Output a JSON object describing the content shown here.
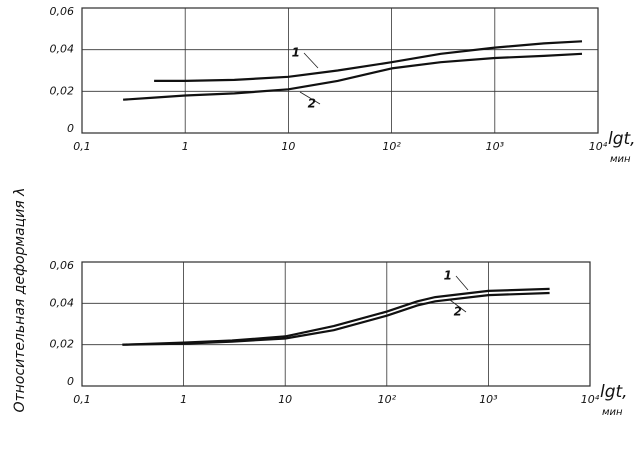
{
  "ylabel": "Относительная деформация λ",
  "chart_data": [
    {
      "type": "line",
      "log_x": true,
      "grid": true,
      "xlim": [
        0.1,
        10000
      ],
      "ylim": [
        0,
        0.06
      ],
      "xticks": [
        {
          "value": 0.1,
          "label": "0,1"
        },
        1,
        10,
        {
          "value": 100,
          "label": "10²"
        },
        {
          "value": 1000,
          "label": "10³"
        },
        {
          "value": 10000,
          "label": "10⁴"
        }
      ],
      "yticks": [
        0,
        {
          "value": 0.02,
          "label": "0,02"
        },
        {
          "value": 0.04,
          "label": "0,04"
        },
        {
          "value": 0.06,
          "label": "0,06"
        }
      ],
      "xlabel": "lgt,",
      "xunit": "мин",
      "x": [
        0.25,
        0.5,
        1,
        3,
        10,
        30,
        100,
        300,
        1000,
        3000,
        7000
      ],
      "series": [
        {
          "name": "1",
          "color": "#111111",
          "values": [
            null,
            0.025,
            0.025,
            0.0255,
            0.027,
            0.03,
            0.034,
            0.038,
            0.041,
            0.043,
            0.044
          ]
        },
        {
          "name": "2",
          "color": "#111111",
          "values": [
            0.016,
            0.017,
            0.018,
            0.019,
            0.021,
            0.025,
            0.031,
            0.034,
            0.036,
            0.037,
            0.038
          ]
        }
      ]
    },
    {
      "type": "line",
      "log_x": true,
      "grid": true,
      "xlim": [
        0.1,
        10000
      ],
      "ylim": [
        0,
        0.06
      ],
      "xticks": [
        {
          "value": 0.1,
          "label": "0,1"
        },
        1,
        10,
        {
          "value": 100,
          "label": "10²"
        },
        {
          "value": 1000,
          "label": "10³"
        },
        {
          "value": 10000,
          "label": "10⁴"
        }
      ],
      "yticks": [
        0,
        {
          "value": 0.02,
          "label": "0,02"
        },
        {
          "value": 0.04,
          "label": "0,04"
        },
        {
          "value": 0.06,
          "label": "0,06"
        }
      ],
      "xlabel": "lgt,",
      "xunit": "мин",
      "x": [
        0.25,
        1,
        3,
        10,
        30,
        100,
        200,
        300,
        1000,
        4000
      ],
      "series": [
        {
          "name": "1",
          "color": "#111111",
          "values": [
            0.02,
            0.021,
            0.022,
            0.024,
            0.029,
            0.036,
            0.041,
            0.043,
            0.046,
            0.047
          ]
        },
        {
          "name": "2",
          "color": "#111111",
          "values": [
            0.02,
            0.0205,
            0.0215,
            0.023,
            0.027,
            0.034,
            0.039,
            0.041,
            0.044,
            0.045
          ]
        }
      ]
    }
  ]
}
